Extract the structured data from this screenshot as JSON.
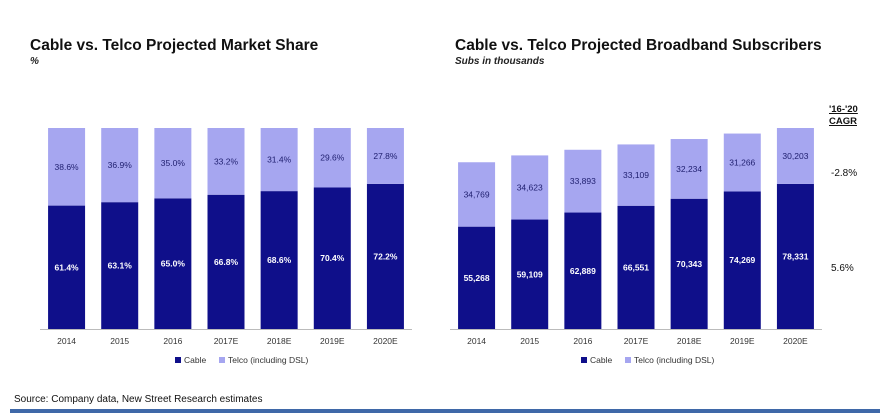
{
  "colors": {
    "cable": "#0f0f8a",
    "telco": "#a6a6f0",
    "rule": "#3f68a8"
  },
  "left": {
    "title": "Cable vs. Telco Projected Market Share",
    "subtitle": "%"
  },
  "right": {
    "title": "Cable vs. Telco Projected Broadband Subscribers",
    "subtitle": "Subs in thousands",
    "cagr_header_line1": "'16-'20",
    "cagr_header_line2": "CAGR",
    "cagr_telco": "-2.8%",
    "cagr_cable": "5.6%"
  },
  "source": "Source: Company data, New Street Research estimates",
  "chart_data": [
    {
      "type": "bar",
      "stacked": true,
      "title": "Cable vs. Telco Projected Market Share",
      "ylabel": "%",
      "categories": [
        "2014",
        "2015",
        "2016",
        "2017E",
        "2018E",
        "2019E",
        "2020E"
      ],
      "series": [
        {
          "name": "Cable",
          "values": [
            61.4,
            63.1,
            65.0,
            66.8,
            68.6,
            70.4,
            72.2
          ],
          "labels": [
            "61.4%",
            "63.1%",
            "65.0%",
            "66.8%",
            "68.6%",
            "70.4%",
            "72.2%"
          ]
        },
        {
          "name": "Telco (including DSL)",
          "values": [
            38.6,
            36.9,
            35.0,
            33.2,
            31.4,
            29.6,
            27.8
          ],
          "labels": [
            "38.6%",
            "36.9%",
            "35.0%",
            "33.2%",
            "31.4%",
            "29.6%",
            "27.8%"
          ]
        }
      ],
      "ylim": [
        0,
        100
      ]
    },
    {
      "type": "bar",
      "stacked": true,
      "title": "Cable vs. Telco Projected Broadband Subscribers",
      "ylabel": "Subs in thousands",
      "categories": [
        "2014",
        "2015",
        "2016",
        "2017E",
        "2018E",
        "2019E",
        "2020E"
      ],
      "series": [
        {
          "name": "Cable",
          "values": [
            55268,
            59109,
            62889,
            66551,
            70343,
            74269,
            78331
          ],
          "labels": [
            "55,268",
            "59,109",
            "62,889",
            "66,551",
            "70,343",
            "74,269",
            "78,331"
          ]
        },
        {
          "name": "Telco (including DSL)",
          "values": [
            34769,
            34623,
            33893,
            33109,
            32234,
            31266,
            30203
          ],
          "labels": [
            "34,769",
            "34,623",
            "33,893",
            "33,109",
            "32,234",
            "31,266",
            "30,203"
          ]
        }
      ],
      "ylim": [
        0,
        108534
      ]
    }
  ]
}
